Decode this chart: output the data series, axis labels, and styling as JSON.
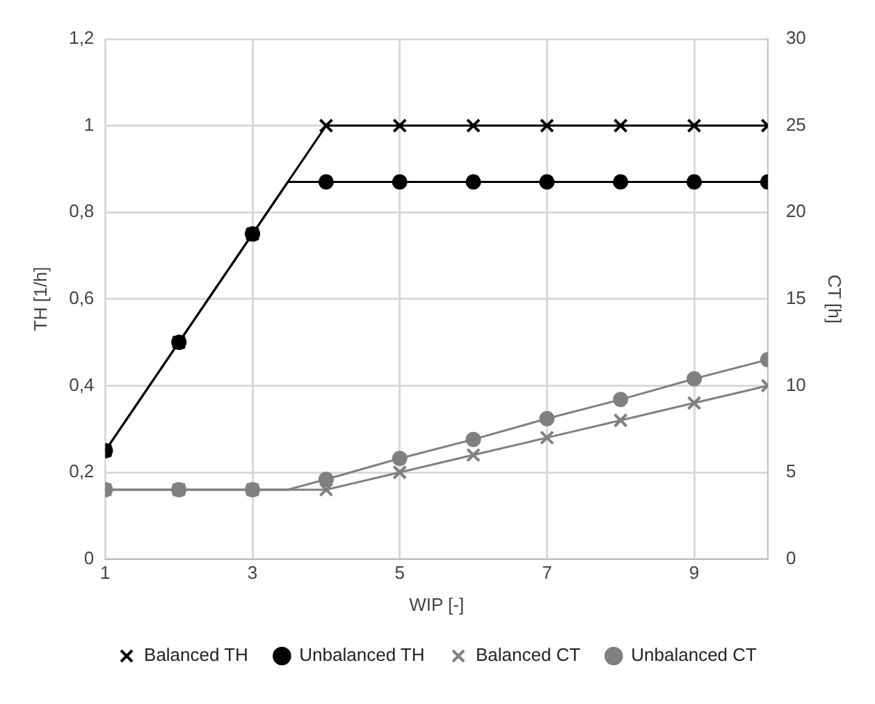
{
  "chart_data": {
    "type": "line",
    "xlabel": "WIP [-]",
    "ylabel": "TH [1/h]",
    "y2label": "CT [h]",
    "xlim": [
      1,
      10
    ],
    "xticks": [
      1,
      3,
      5,
      7,
      9
    ],
    "ylim": [
      0,
      1.2
    ],
    "yticks": [
      {
        "value": 0,
        "label": "0"
      },
      {
        "value": 0.2,
        "label": "0,2"
      },
      {
        "value": 0.4,
        "label": "0,4"
      },
      {
        "value": 0.6,
        "label": "0,6"
      },
      {
        "value": 0.8,
        "label": "0,8"
      },
      {
        "value": 1,
        "label": "1"
      },
      {
        "value": 1.2,
        "label": "1,2"
      }
    ],
    "y2lim": [
      0,
      30
    ],
    "y2ticks": [
      0,
      5,
      10,
      15,
      20,
      25,
      30
    ],
    "grid": true,
    "legend": "bottom",
    "series": [
      {
        "name": "Balanced TH",
        "color": "#000000",
        "marker": "cross",
        "x": [
          1,
          2,
          3,
          4,
          5,
          6,
          7,
          8,
          9,
          10
        ],
        "values": [
          0.25,
          0.5,
          0.75,
          1,
          1,
          1,
          1,
          1,
          1,
          1
        ]
      },
      {
        "name": "Unbalanced TH",
        "color": "#000000",
        "marker": "circle",
        "x": [
          1,
          2,
          3,
          3.48,
          4,
          5,
          6,
          7,
          8,
          9,
          10
        ],
        "values": [
          0.25,
          0.5,
          0.75,
          0.87,
          0.87,
          0.87,
          0.87,
          0.87,
          0.87,
          0.87,
          0.87
        ]
      },
      {
        "name": "Balanced CT",
        "color": "#808080",
        "marker": "cross",
        "axis": "y2",
        "x": [
          1,
          2,
          3,
          4,
          5,
          6,
          7,
          8,
          9,
          10
        ],
        "values": [
          4,
          4,
          4,
          4,
          5,
          6,
          7,
          8,
          9,
          10
        ]
      },
      {
        "name": "Unbalanced CT",
        "color": "#808080",
        "marker": "circle",
        "axis": "y2",
        "x": [
          1,
          2,
          3,
          3.48,
          4,
          5,
          6,
          7,
          8,
          9,
          10
        ],
        "values": [
          4,
          4,
          4,
          4,
          4.6,
          5.8,
          6.9,
          8.1,
          9.2,
          10.4,
          11.5
        ]
      }
    ]
  }
}
